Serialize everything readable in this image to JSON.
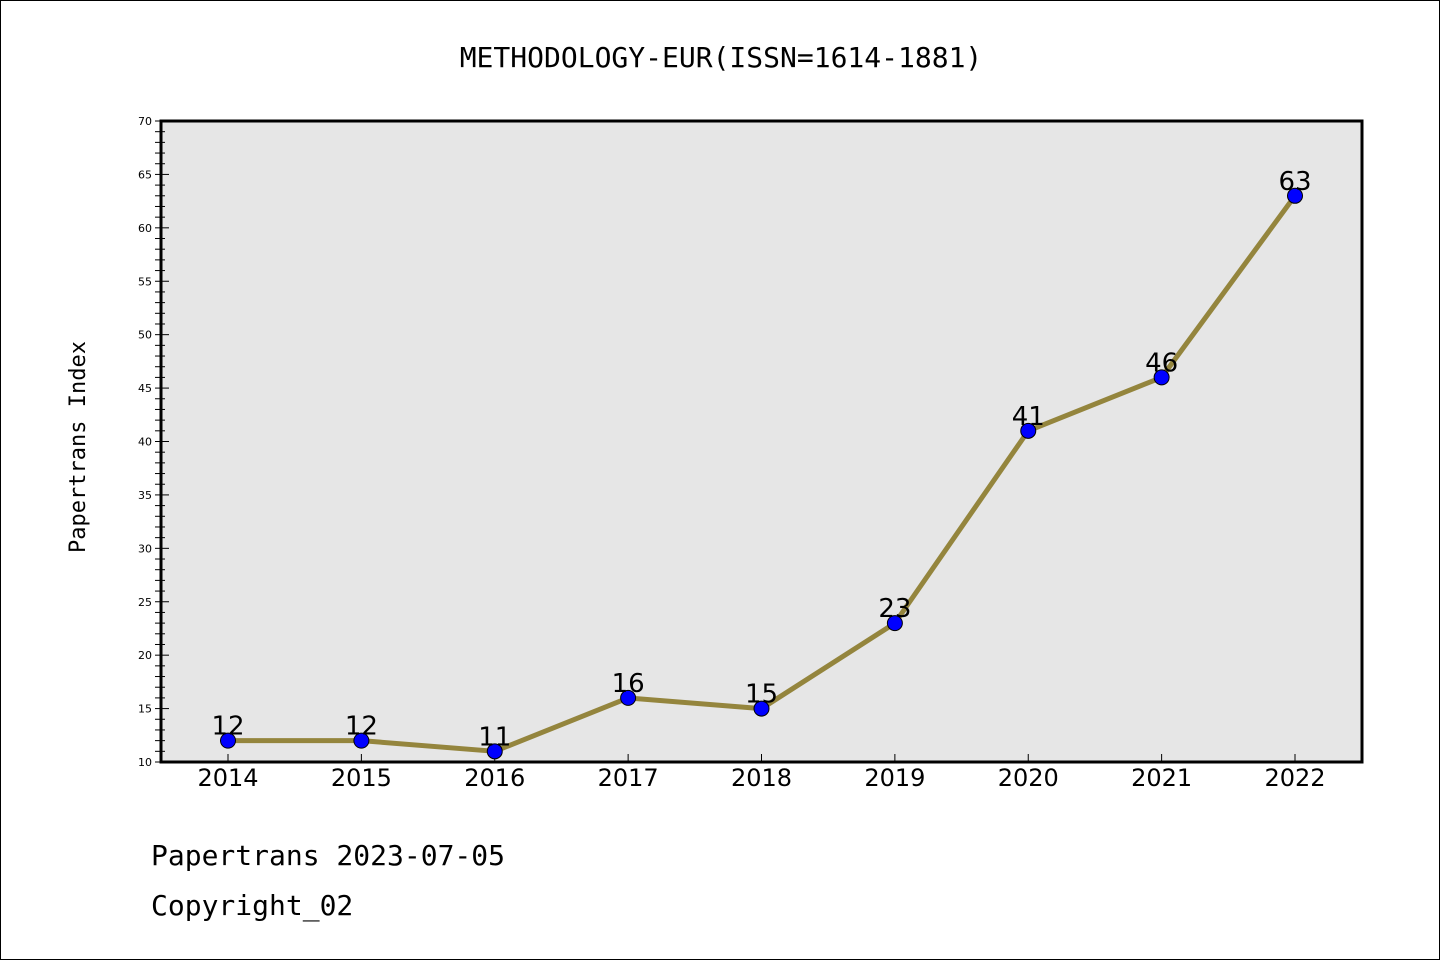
{
  "footer": {
    "source_line": "Papertrans 2023-07-05",
    "copyright": "Copyright_02"
  },
  "chart_data": {
    "type": "line",
    "title": "METHODOLOGY-EUR(ISSN=1614-1881)",
    "xlabel": "",
    "ylabel": "Papertrans Index",
    "categories": [
      "2014",
      "2015",
      "2016",
      "2017",
      "2018",
      "2019",
      "2020",
      "2021",
      "2022"
    ],
    "series": [
      {
        "values": [
          12,
          12,
          11,
          16,
          15,
          23,
          41,
          46,
          63
        ]
      }
    ],
    "data_labels": [
      "12",
      "12",
      "11",
      "16",
      "15",
      "23",
      "41",
      "46",
      "63"
    ],
    "ylim": [
      10,
      70
    ],
    "yticks": [
      10,
      15,
      20,
      25,
      30,
      35,
      40,
      45,
      50,
      55,
      60,
      65,
      70
    ],
    "y_minor_step": 1,
    "grid": false,
    "legend": "none",
    "colors": {
      "line": "#94853d",
      "marker": "#0000ff",
      "plot_background": "#e6e6e6",
      "axes": "#000000"
    }
  }
}
